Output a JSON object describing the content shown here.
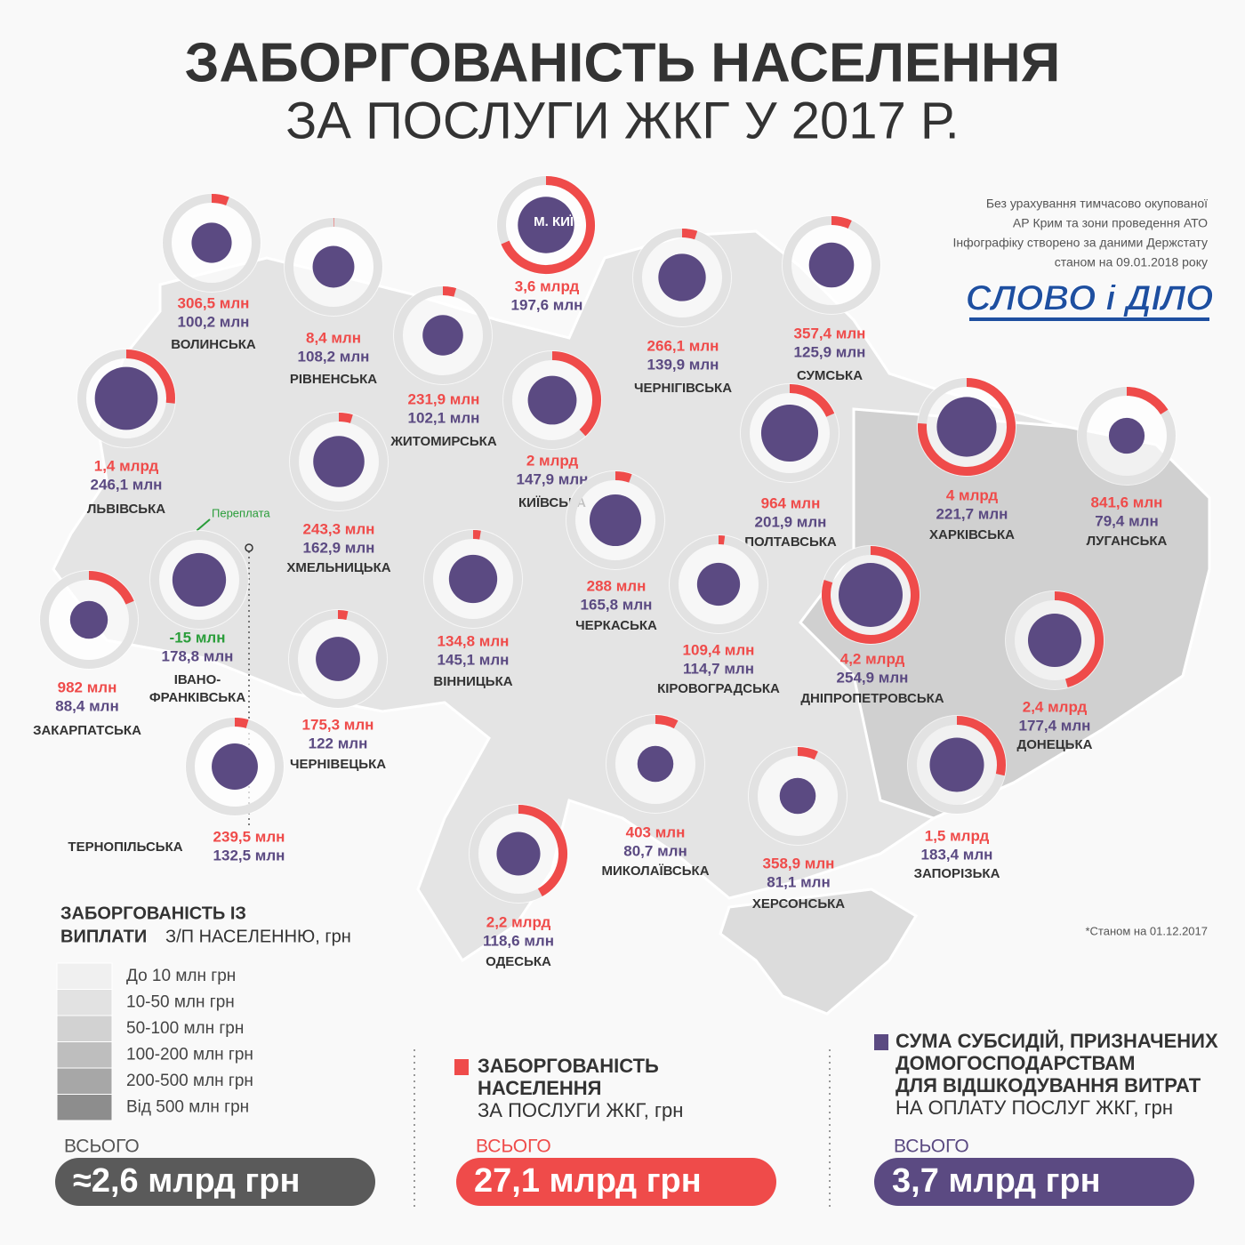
{
  "header": {
    "title": "ЗАБОРГОВАНІСТЬ НАСЕЛЕННЯ",
    "subtitle": "ЗА ПОСЛУГИ ЖКГ У 2017 Р."
  },
  "notes": [
    "Без урахування тимчасово окупованої",
    "АР Крим та зони проведення АТО",
    "Інфографіку створено за даними Держстату",
    "станом на 09.01.2018 року"
  ],
  "logo": "СЛОВО і ДІЛО",
  "overpayment_note": "Переплата",
  "footnote": "*Станом на 01.12.2017",
  "regions": [
    {
      "name": "ВОЛИНСЬКА",
      "debt": 306.5,
      "debt_label": "306,5 млн",
      "subsidy": 100.2,
      "subsidy_label": "100,2 млн"
    },
    {
      "name": "РІВНЕНСЬКА",
      "debt": 8.4,
      "debt_label": "8,4 млн",
      "subsidy": 108.2,
      "subsidy_label": "108,2 млн"
    },
    {
      "name": "ЖИТОМИРСЬКА",
      "debt": 231.9,
      "debt_label": "231,9 млн",
      "subsidy": 102.1,
      "subsidy_label": "102,1 млн"
    },
    {
      "name": "М. КИЇВ",
      "debt": 3600,
      "debt_label": "3,6 млрд",
      "subsidy": 197.6,
      "subsidy_label": "197,6 млн"
    },
    {
      "name": "ЧЕРНІГІВСЬКА",
      "debt": 266.1,
      "debt_label": "266,1 млн",
      "subsidy": 139.9,
      "subsidy_label": "139,9 млн"
    },
    {
      "name": "СУМСЬКА",
      "debt": 357.4,
      "debt_label": "357,4 млн",
      "subsidy": 125.9,
      "subsidy_label": "125,9 млн"
    },
    {
      "name": "ЛЬВІВСЬКА",
      "debt": 1400,
      "debt_label": "1,4 млрд",
      "subsidy": 246.1,
      "subsidy_label": "246,1 млн"
    },
    {
      "name": "КИЇВСЬКА",
      "debt": 2000,
      "debt_label": "2 млрд",
      "subsidy": 147.9,
      "subsidy_label": "147,9 млн"
    },
    {
      "name": "ХМЕЛЬНИЦЬКА",
      "debt": 243.3,
      "debt_label": "243,3 млн",
      "subsidy": 162.9,
      "subsidy_label": "162,9 млн"
    },
    {
      "name": "ПОЛТАВСЬКА",
      "debt": 964,
      "debt_label": "964 млн",
      "subsidy": 201.9,
      "subsidy_label": "201,9 млн"
    },
    {
      "name": "ХАРКІВСЬКА",
      "debt": 4000,
      "debt_label": "4 млрд",
      "subsidy": 221.7,
      "subsidy_label": "221,7 млн"
    },
    {
      "name": "ЛУГАНСЬКА",
      "debt": 841.6,
      "debt_label": "841,6 млн",
      "subsidy": 79.4,
      "subsidy_label": "79,4 млн"
    },
    {
      "name": "ТЕРНОПІЛЬСЬКА",
      "debt": 239.5,
      "debt_label": "239,5 млн",
      "subsidy": 132.5,
      "subsidy_label": "132,5 млн"
    },
    {
      "name": "ЗАКАРПАТСЬКА",
      "debt": 982,
      "debt_label": "982 млн",
      "subsidy": 88.4,
      "subsidy_label": "88,4 млн"
    },
    {
      "name": "ВІННИЦЬКА",
      "debt": 134.8,
      "debt_label": "134,8 млн",
      "subsidy": 145.1,
      "subsidy_label": "145,1 млн"
    },
    {
      "name": "ЧЕРКАСЬКА",
      "debt": 288,
      "debt_label": "288 млн",
      "subsidy": 165.8,
      "subsidy_label": "165,8 млн"
    },
    {
      "name": "КІРОВОГРАДСЬКА",
      "debt": 109.4,
      "debt_label": "109,4 млн",
      "subsidy": 114.7,
      "subsidy_label": "114,7 млн"
    },
    {
      "name": "ДНІПРОПЕТРОВСЬКА",
      "debt": 4200,
      "debt_label": "4,2 млрд",
      "subsidy": 254.9,
      "subsidy_label": "254,9 млн"
    },
    {
      "name": "ДОНЕЦЬКА",
      "debt": 2400,
      "debt_label": "2,4 млрд",
      "subsidy": 177.4,
      "subsidy_label": "177,4 млн"
    },
    {
      "name": "ЧЕРНІВЕЦЬКА",
      "debt": 175.3,
      "debt_label": "175,3 млн",
      "subsidy": 122,
      "subsidy_label": "122 млн"
    },
    {
      "name": "МИКОЛАЇВСЬКА",
      "debt": 403,
      "debt_label": "403 млн",
      "subsidy": 80.7,
      "subsidy_label": "80,7 млн"
    },
    {
      "name": "ХЕРСОНСЬКА",
      "debt": 358.9,
      "debt_label": "358,9 млн",
      "subsidy": 81.1,
      "subsidy_label": "81,1 млн"
    },
    {
      "name": "ЗАПОРІЗЬКА",
      "debt": 1500,
      "debt_label": "1,5 млрд",
      "subsidy": 183.4,
      "subsidy_label": "183,4 млн"
    },
    {
      "name": "ОДЕСЬКА",
      "debt": 2200,
      "debt_label": "2,2 млрд",
      "subsidy": 118.6,
      "subsidy_label": "118,6 млн"
    },
    {
      "name": "ІВАНО-ФРАНКІВСЬКА",
      "debt": -15,
      "debt_label": "-15 млн",
      "subsidy": 178.8,
      "subsidy_label": "178,8 млн"
    }
  ],
  "legend": {
    "title_line1": "ЗАБОРГОВАНІСТЬ ІЗ",
    "title_bold": "ВИПЛАТИ",
    "title_regular": "З/П НАСЕЛЕННЮ, грн",
    "items": [
      {
        "label": "До 10 млн грн",
        "color": "#f0f0f0"
      },
      {
        "label": "10-50 млн грн",
        "color": "#e2e2e2"
      },
      {
        "label": "50-100 млн грн",
        "color": "#d2d2d2"
      },
      {
        "label": "100-200 млн грн",
        "color": "#bebebe"
      },
      {
        "label": "200-500 млн грн",
        "color": "#a7a7a7"
      },
      {
        "label": "Від 500 млн грн",
        "color": "#8d8d8d"
      }
    ]
  },
  "totals": [
    {
      "bold_lines": [],
      "regular_lines": [],
      "label": "ВСЬОГО",
      "value": "≈2,6 млрд грн",
      "color": "#5a5a5a"
    },
    {
      "bold_lines": [
        "ЗАБОРГОВАНІСТЬ",
        "НАСЕЛЕННЯ"
      ],
      "regular_lines": [
        "ЗА ПОСЛУГИ ЖКГ, грн"
      ],
      "label": "ВСЬОГО",
      "value": "27,1 млрд грн",
      "color": "#ef4b4a"
    },
    {
      "bold_lines": [
        "СУМА СУБСИДІЙ, ПРИЗНАЧЕНИХ",
        "ДОМОГОСПОДАРСТВАМ",
        "ДЛЯ ВІДШКОДУВАННЯ ВИТРАТ"
      ],
      "regular_lines": [
        "НА ОПЛАТУ ПОСЛУГ ЖКГ,  грн"
      ],
      "label": "ВСЬОГО",
      "value": "3,7 млрд грн",
      "color": "#5b4a82"
    }
  ]
}
